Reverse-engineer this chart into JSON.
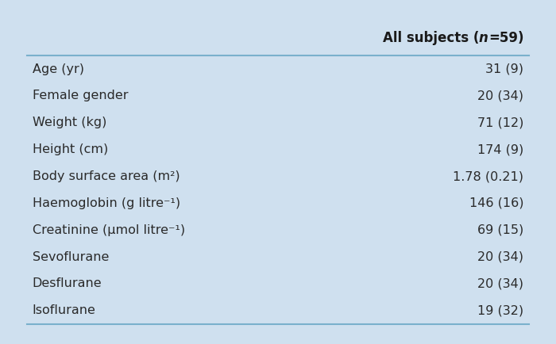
{
  "rows": [
    [
      "Age (yr)",
      "31 (9)"
    ],
    [
      "Female gender",
      "20 (34)"
    ],
    [
      "Weight (kg)",
      "71 (12)"
    ],
    [
      "Height (cm)",
      "174 (9)"
    ],
    [
      "Body surface area (m²)",
      "1.78 (0.21)"
    ],
    [
      "Haemoglobin (g litre⁻¹)",
      "146 (16)"
    ],
    [
      "Creatinine (μmol litre⁻¹)",
      "69 (15)"
    ],
    [
      "Sevoflurane",
      "20 (34)"
    ],
    [
      "Desflurane",
      "20 (34)"
    ],
    [
      "Isoflurane",
      "19 (32)"
    ]
  ],
  "header_pre": "All subjects (",
  "header_n": "n",
  "header_post": "=59)",
  "background_color": "#cfe0ef",
  "table_bg": "#eef5fb",
  "header_text_color": "#1a1a1a",
  "row_text_color": "#2a2a2a",
  "line_color": "#7ab0cc",
  "font_size": 11.5,
  "header_font_size": 12
}
